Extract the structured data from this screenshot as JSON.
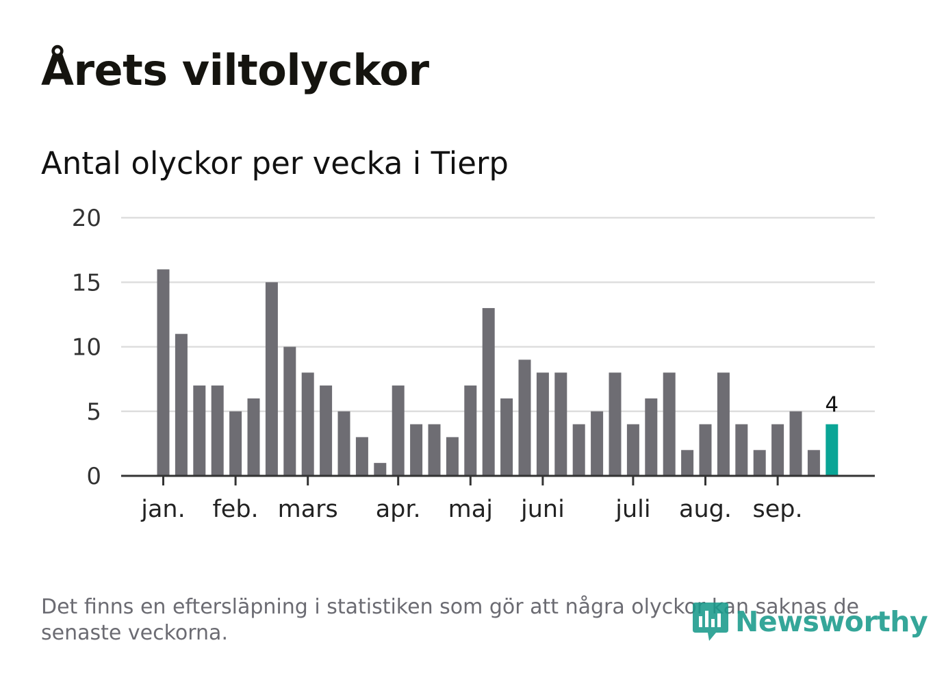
{
  "header": {
    "title": "Årets viltolyckor",
    "subtitle": "Antal olyckor per vecka i Tierp"
  },
  "chart_data": {
    "type": "bar",
    "title": "Årets viltolyckor",
    "subtitle": "Antal olyckor per vecka i Tierp",
    "xlabel": "",
    "ylabel": "",
    "ylim": [
      0,
      20
    ],
    "yticks": [
      0,
      5,
      10,
      15,
      20
    ],
    "grid": true,
    "weeks": [
      1,
      2,
      3,
      4,
      5,
      6,
      7,
      8,
      9,
      10,
      11,
      12,
      13,
      14,
      15,
      16,
      17,
      18,
      19,
      20,
      21,
      22,
      23,
      24,
      25,
      26,
      27,
      28,
      29,
      30,
      31,
      32,
      33,
      34,
      35,
      36,
      37,
      38
    ],
    "values": [
      16,
      11,
      7,
      7,
      5,
      6,
      15,
      10,
      8,
      7,
      5,
      3,
      1,
      7,
      4,
      4,
      3,
      7,
      13,
      6,
      9,
      8,
      8,
      4,
      5,
      8,
      4,
      6,
      8,
      2,
      4,
      8,
      4,
      2,
      4,
      5,
      2,
      4
    ],
    "month_labels": [
      {
        "label": "jan.",
        "week": 1
      },
      {
        "label": "feb.",
        "week": 5
      },
      {
        "label": "mars",
        "week": 9
      },
      {
        "label": "apr.",
        "week": 14
      },
      {
        "label": "maj",
        "week": 18
      },
      {
        "label": "juni",
        "week": 22
      },
      {
        "label": "juli",
        "week": 27
      },
      {
        "label": "aug.",
        "week": 31
      },
      {
        "label": "sep.",
        "week": 35
      }
    ],
    "highlight_last": true,
    "last_value_label": "4",
    "colors": {
      "bar": "#6e6d73",
      "highlight": "#0aa596",
      "grid": "#dedede",
      "axis": "#333333"
    }
  },
  "footer": {
    "note": "Det finns en eftersläpning i statistiken som gör att några olyckor kan saknas de senaste veckorna.",
    "logo_text": "Newsworthy",
    "logo_icon": "newsworthy-logo-icon",
    "logo_color": "#1a9a8c"
  }
}
